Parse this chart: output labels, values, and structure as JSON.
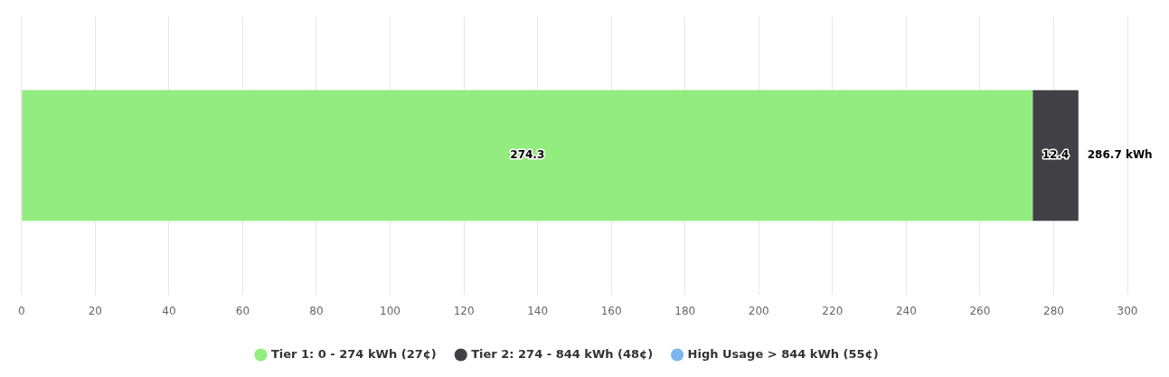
{
  "chart_data": {
    "type": "bar",
    "orientation": "horizontal",
    "stacked": true,
    "categories": [
      null
    ],
    "series": [
      {
        "name": "Tier 1: 0 - 274 kWh (27¢)",
        "color": "#92ec7e",
        "values": [
          274.3
        ],
        "value_labels": [
          "274.3"
        ]
      },
      {
        "name": "Tier 2: 274 - 844 kWh (48¢)",
        "color": "#414045",
        "values": [
          12.4
        ],
        "value_labels": [
          "12.4"
        ]
      },
      {
        "name": "High Usage > 844 kWh (55¢)",
        "color": "#7cb5ec",
        "values": [
          0
        ],
        "value_labels": [
          null
        ]
      }
    ],
    "totals": [
      "286.7 kWh"
    ],
    "xlim": [
      0,
      300
    ],
    "xticks": [
      0,
      20,
      40,
      60,
      80,
      100,
      120,
      140,
      160,
      180,
      200,
      220,
      240,
      260,
      280,
      300
    ],
    "grid": "x",
    "legend": "bottom",
    "marker": "circle"
  }
}
